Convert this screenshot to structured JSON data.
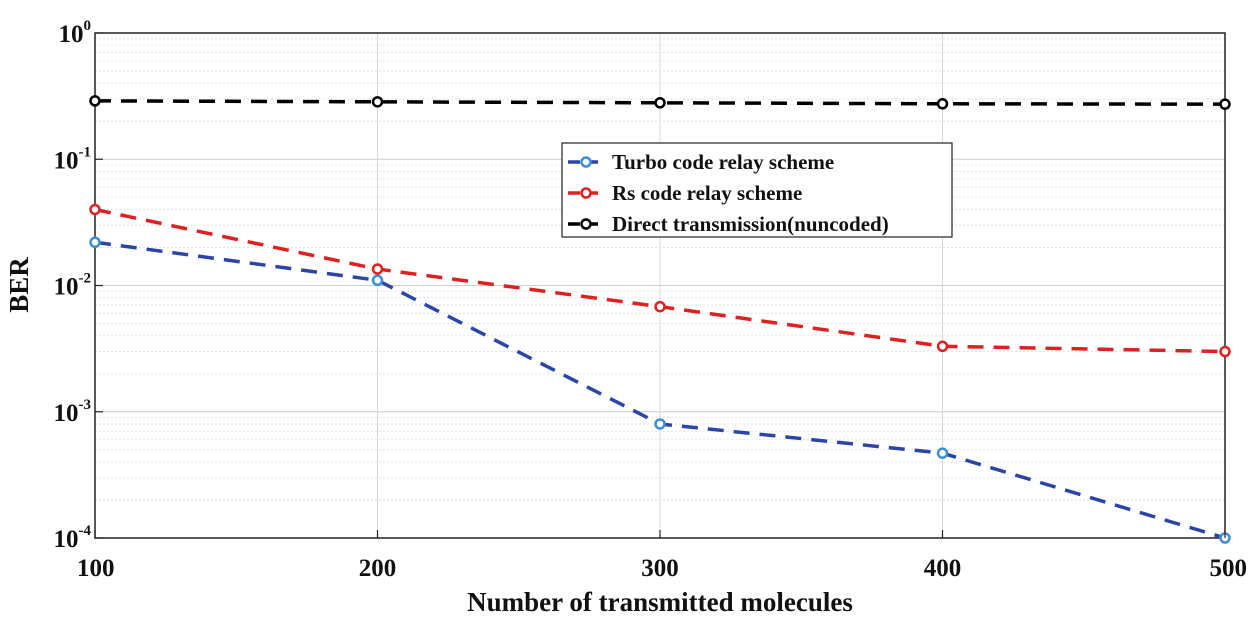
{
  "chart_data": {
    "type": "line",
    "title": "",
    "xlabel": "Number of transmitted molecules",
    "ylabel": "BER",
    "x": [
      100,
      200,
      300,
      400,
      500
    ],
    "xlim": [
      100,
      500
    ],
    "ylim": [
      0.0001,
      1
    ],
    "yscale": "log",
    "xticks": [
      "100",
      "200",
      "300",
      "400",
      "500"
    ],
    "yticks": [
      {
        "value": 1,
        "base": "10",
        "exp": "0"
      },
      {
        "value": 0.1,
        "base": "10",
        "exp": "-1"
      },
      {
        "value": 0.01,
        "base": "10",
        "exp": "-2"
      },
      {
        "value": 0.001,
        "base": "10",
        "exp": "-3"
      },
      {
        "value": 0.0001,
        "base": "10",
        "exp": "-4"
      }
    ],
    "grid": true,
    "legend_position": "center-right",
    "series": [
      {
        "name": "Turbo code relay scheme",
        "color": "#2a45a8",
        "marker_color": "#3b8fd6",
        "values": [
          0.022,
          0.011,
          0.0008,
          0.00047,
          0.0001
        ]
      },
      {
        "name": "Rs code  relay scheme",
        "color": "#e02020",
        "marker_color": "#e02020",
        "values": [
          0.04,
          0.0135,
          0.0068,
          0.0033,
          0.003
        ]
      },
      {
        "name": "Direct transmission(nuncoded)",
        "color": "#000000",
        "marker_color": "#000000",
        "values": [
          0.29,
          0.285,
          0.28,
          0.275,
          0.273
        ]
      }
    ]
  }
}
